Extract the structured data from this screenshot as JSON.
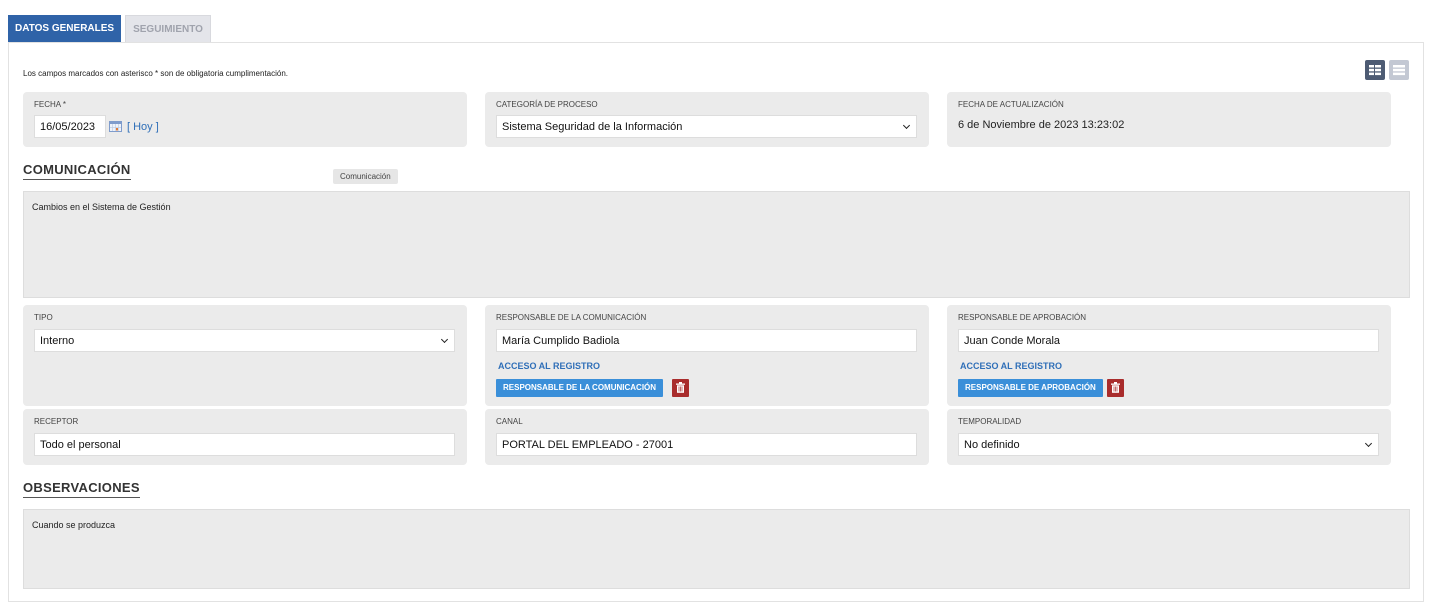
{
  "tabs": [
    {
      "label": "DATOS GENERALES",
      "active": true
    },
    {
      "label": "SEGUIMIENTO",
      "active": false
    }
  ],
  "note": "Los campos marcados con asterisco * son de obligatoria cumplimentación.",
  "view_icons": [
    "grid-view-icon",
    "list-view-icon"
  ],
  "fecha": {
    "label": "FECHA *",
    "value": "16/05/2023",
    "today_link": "[ Hoy ]"
  },
  "categoria": {
    "label": "CATEGORÍA DE PROCESO",
    "value": "Sistema Seguridad de la Información"
  },
  "actualizacion": {
    "label": "FECHA DE ACTUALIZACIÓN",
    "value": "6 de Noviembre de 2023 13:23:02"
  },
  "comunicacion": {
    "heading": "COMUNICACIÓN",
    "tooltip": "Comunicación",
    "value": "Cambios en el Sistema de Gestión"
  },
  "tipo": {
    "label": "TIPO",
    "value": "Interno"
  },
  "responsable_com": {
    "label": "RESPONSABLE DE LA COMUNICACIÓN",
    "value": "María Cumplido Badiola",
    "link": "ACCESO AL REGISTRO",
    "button": "RESPONSABLE DE LA COMUNICACIÓN"
  },
  "responsable_apr": {
    "label": "RESPONSABLE DE APROBACIÓN",
    "value": "Juan Conde Morala",
    "link": "ACCESO AL REGISTRO",
    "button": "RESPONSABLE DE APROBACIÓN"
  },
  "receptor": {
    "label": "RECEPTOR",
    "value": "Todo el personal"
  },
  "canal": {
    "label": "CANAL",
    "value": "PORTAL DEL EMPLEADO - 27001"
  },
  "temporalidad": {
    "label": "TEMPORALIDAD",
    "value": "No definido"
  },
  "observaciones": {
    "heading": "OBSERVACIONES",
    "value": "Cuando se produzca"
  },
  "colors": {
    "tab_active": "#2f63a8",
    "button": "#3a8fd9",
    "delete": "#a92c2c",
    "link": "#2f6fb8"
  }
}
